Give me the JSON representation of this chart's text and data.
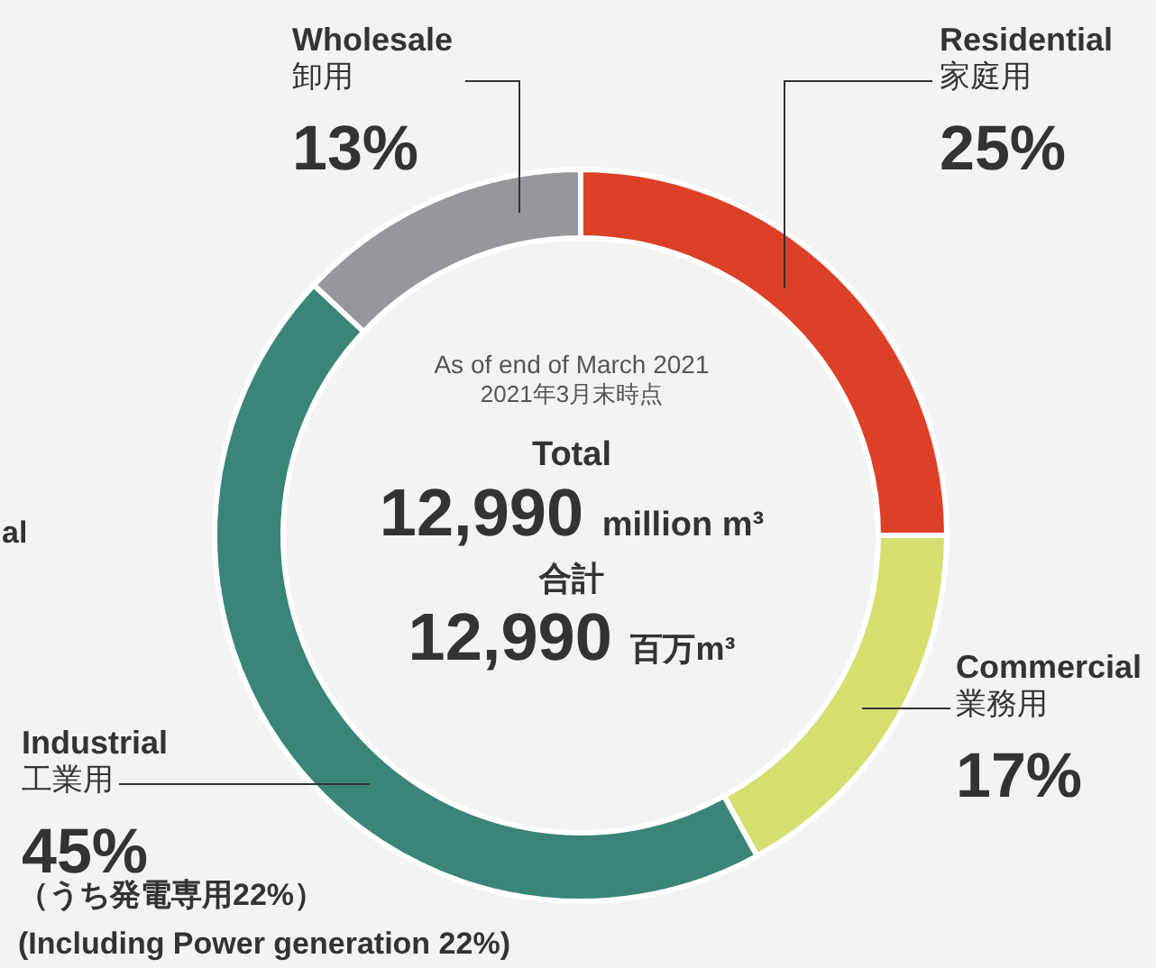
{
  "chart_data": {
    "type": "donut",
    "categories": [
      "Residential\n家庭用",
      "Commercial\n業務用",
      "Industrial\n工業用",
      "Wholesale\n卸用"
    ],
    "values": [
      25,
      17,
      45,
      13
    ],
    "colors": [
      "#dc4128",
      "#d5e070",
      "#3a8578",
      "#96979b"
    ],
    "value_labels": [
      "25%",
      "17%",
      "45%",
      "13%"
    ],
    "annotations": [
      "As of end of March 2021",
      "2021年3月末時点",
      "Total",
      "12,990 million m³",
      "合計",
      "12,990 百万m³",
      "（うち発電専用22%）",
      "(Including Power generation 22%)",
      "al"
    ]
  }
}
